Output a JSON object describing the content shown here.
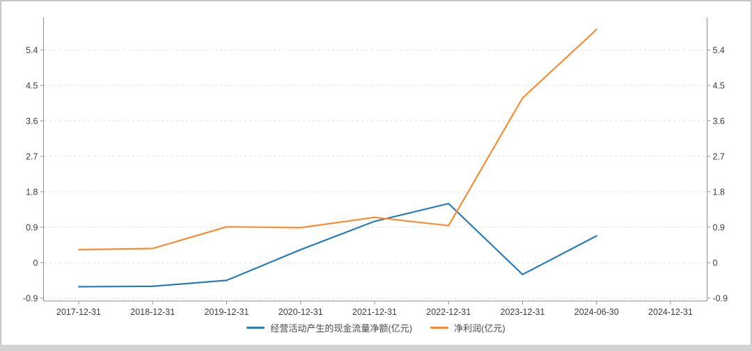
{
  "chart_data": {
    "type": "line",
    "title": "",
    "categories": [
      "2017-12-31",
      "2018-12-31",
      "2019-12-31",
      "2020-12-31",
      "2021-12-31",
      "2022-12-31",
      "2023-12-31",
      "2024-06-30",
      "2024-12-31"
    ],
    "series": [
      {
        "name": "经营活动产生的现金流量净额(亿元)",
        "color": "#2b7cb5",
        "values": [
          -0.61,
          -0.6,
          -0.45,
          0.33,
          1.05,
          1.5,
          -0.3,
          0.68,
          null
        ]
      },
      {
        "name": "净利润(亿元)",
        "color": "#f98b32",
        "values": [
          0.33,
          0.36,
          0.91,
          0.89,
          1.15,
          0.94,
          4.18,
          5.92,
          null
        ]
      }
    ],
    "y_ticks": [
      -0.9,
      0,
      0.9,
      1.8,
      2.7,
      3.6,
      4.5,
      5.4
    ],
    "ylim": [
      -0.97,
      6.24
    ],
    "xlabel": "",
    "ylabel": "",
    "dual_y_axis": true,
    "grid": "horizontal-dashed",
    "grid_color": "#e2e2e2",
    "axis_color": "#8f8f8f",
    "tick_label_color": "#3c3c3c",
    "legend_position": "bottom-center",
    "background_color": "#ffffff"
  }
}
